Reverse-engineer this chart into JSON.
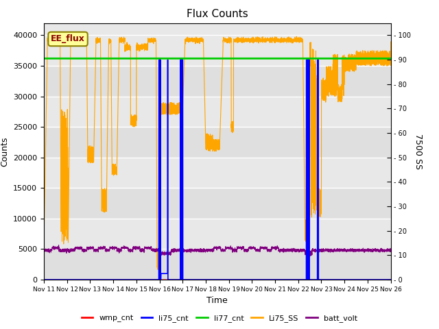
{
  "title": "Flux Counts",
  "xlabel": "Time",
  "ylabel_left": "Counts",
  "ylabel_right": "7500 SS",
  "ylim_left": [
    0,
    42000
  ],
  "ylim_right": [
    0,
    105
  ],
  "annotation_text": "EE_flux",
  "annotation_color": "#8B0000",
  "annotation_bg": "#FFFF99",
  "annotation_border": "#8B8000",
  "bg_color": "#E8E8E8",
  "series": {
    "wmp_cnt": {
      "color": "red",
      "lw": 0.8
    },
    "li75_cnt": {
      "color": "blue",
      "lw": 1.2
    },
    "li77_cnt": {
      "color": "#00CC00",
      "lw": 2.0
    },
    "Li75_SS": {
      "color": "orange",
      "lw": 0.8
    },
    "batt_volt": {
      "color": "purple",
      "lw": 0.8
    }
  },
  "tick_labels": [
    "Nov 11",
    "Nov 12",
    "Nov 13",
    "Nov 14",
    "Nov 15",
    "Nov 16",
    "Nov 17",
    "Nov 18",
    "Nov 19",
    "Nov 20",
    "Nov 21",
    "Nov 22",
    "Nov 23",
    "Nov 24",
    "Nov 25",
    "Nov 26"
  ],
  "right_yticks": [
    0,
    10,
    20,
    30,
    40,
    50,
    60,
    70,
    80,
    90,
    100
  ],
  "left_yticks": [
    0,
    5000,
    10000,
    15000,
    20000,
    25000,
    30000,
    35000,
    40000
  ],
  "li77_level": 36200,
  "batt_base": 4800,
  "orange_base": 39200
}
